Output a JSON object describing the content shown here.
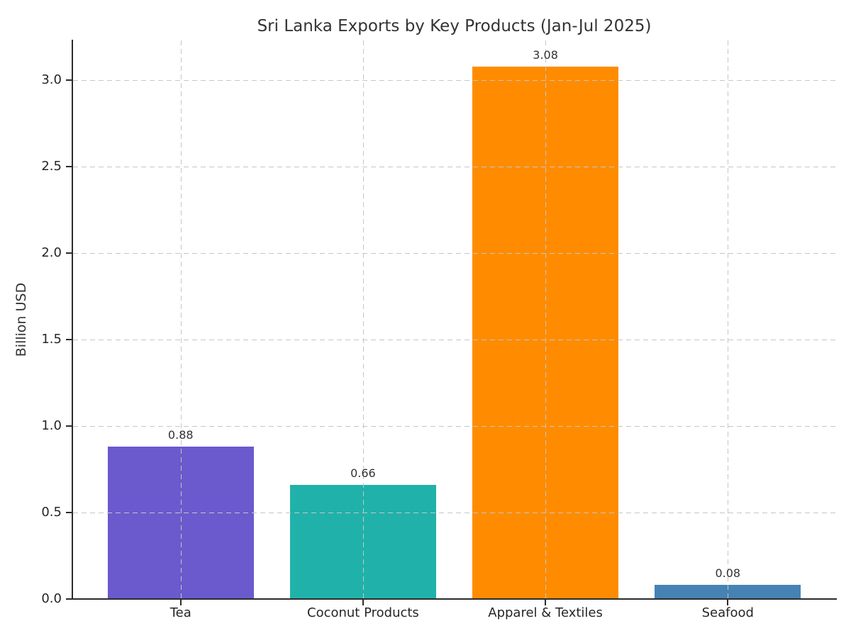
{
  "chart_data": {
    "type": "bar",
    "title": "Sri Lanka Exports by Key Products (Jan-Jul 2025)",
    "xlabel": "",
    "ylabel": "Billion USD",
    "categories": [
      "Tea",
      "Coconut Products",
      "Apparel & Textiles",
      "Seafood"
    ],
    "values": [
      0.88,
      0.66,
      3.08,
      0.08
    ],
    "value_labels": [
      "0.88",
      "0.66",
      "3.08",
      "0.08"
    ],
    "bar_colors": [
      "#6a5acd",
      "#20b2aa",
      "#ff8c00",
      "#4682b4"
    ],
    "yticks": [
      0.0,
      0.5,
      1.0,
      1.5,
      2.0,
      2.5,
      3.0
    ],
    "ytick_labels": [
      "0.0",
      "0.5",
      "1.0",
      "1.5",
      "2.0",
      "2.5",
      "3.0"
    ],
    "ylim": [
      0,
      3.23
    ],
    "grid": "dashed, both axes, drawn over bars",
    "legend": "none"
  },
  "colors": {
    "background": "#ffffff",
    "grid": "#c6c6c6",
    "axis": "#2b2b2b",
    "text": "#333333"
  }
}
